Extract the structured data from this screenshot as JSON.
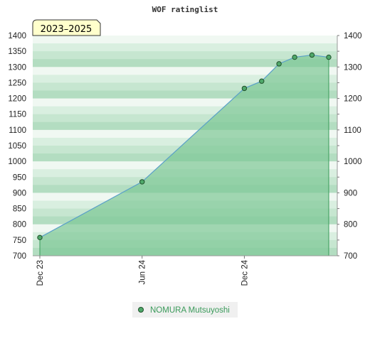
{
  "chart_data": {
    "type": "area",
    "title": "WOF ratinglist",
    "badge": "2023–2025",
    "ylim": [
      700,
      1400
    ],
    "yticks": [
      "700",
      "750",
      "800",
      "850",
      "900",
      "950",
      "1000",
      "1050",
      "1100",
      "1150",
      "1200",
      "1250",
      "1300",
      "1350",
      "1400"
    ],
    "yticks_right": [
      "700",
      "800",
      "900",
      "1000",
      "1100",
      "1200",
      "1300",
      "1400"
    ],
    "xlim": [
      "2023-12-01",
      "2025-06-01"
    ],
    "xticks": [
      {
        "label": "Dec 23",
        "date": "2023-12-01"
      },
      {
        "label": "Jun 24",
        "date": "2024-06-01"
      },
      {
        "label": "Dec 24",
        "date": "2024-12-01"
      }
    ],
    "grid": true,
    "legend_position": "bottom-center",
    "series": [
      {
        "name": "NOMURA Mutsuyoshi",
        "points": [
          {
            "date": "2023-12-01",
            "value": 758
          },
          {
            "date": "2024-06-01",
            "value": 935
          },
          {
            "date": "2024-12-01",
            "value": 1232
          },
          {
            "date": "2025-01-01",
            "value": 1255
          },
          {
            "date": "2025-02-01",
            "value": 1310
          },
          {
            "date": "2025-03-01",
            "value": 1331
          },
          {
            "date": "2025-04-01",
            "value": 1338
          },
          {
            "date": "2025-05-01",
            "value": 1331
          }
        ]
      }
    ],
    "colors": {
      "fill": "#7ec896",
      "line": "#5aa0c8",
      "marker": "#4fa86a",
      "marker_stroke": "#1f4f2a",
      "badge_bg": "#ffffcc",
      "legend_bg": "#f0f0f0"
    }
  }
}
